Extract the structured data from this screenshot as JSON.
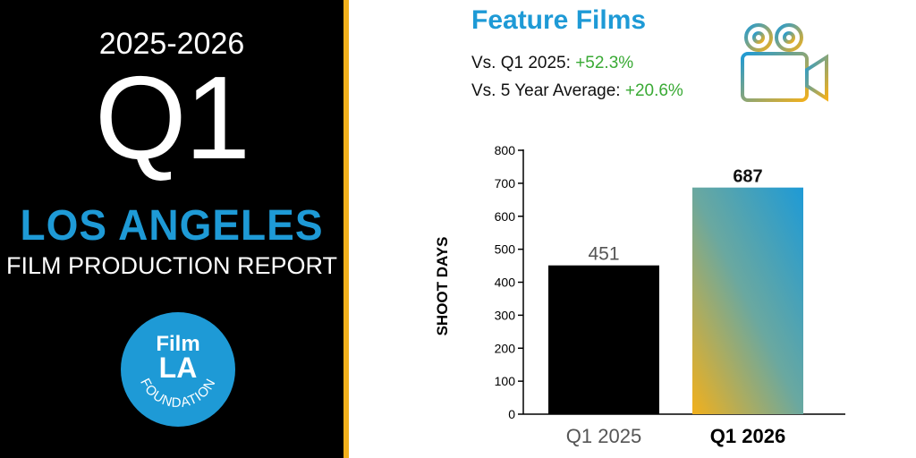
{
  "left": {
    "season": "2025-2026",
    "quarter": "Q1",
    "city": "LOS ANGELES",
    "report": "FILM PRODUCTION REPORT",
    "logo_text_1": "Film",
    "logo_text_2": "LA",
    "logo_text_3": "FOUNDATION"
  },
  "feature": {
    "title": "Feature Films",
    "stats": [
      {
        "label": "Vs. Q1 2025: ",
        "value": "+52.3%"
      },
      {
        "label": "Vs. 5 Year Average: ",
        "value": "+20.6%"
      }
    ]
  },
  "icons": {
    "camera": "film-camera-icon",
    "logo": "filmla-logo"
  },
  "colors": {
    "accent_blue": "#1e9ad6",
    "accent_yellow": "#f2b01c",
    "positive_green": "#3aaa35",
    "bar_dark": "#000000"
  },
  "chart_data": {
    "type": "bar",
    "categories": [
      "Q1 2025",
      "Q1 2026"
    ],
    "values": [
      451,
      687
    ],
    "data_labels": [
      "451",
      "687"
    ],
    "title": "",
    "xlabel": "",
    "ylabel": "SHOOT DAYS",
    "ylim": [
      0,
      800
    ],
    "yticks": [
      0,
      100,
      200,
      300,
      400,
      500,
      600,
      700,
      800
    ],
    "grid": false
  }
}
